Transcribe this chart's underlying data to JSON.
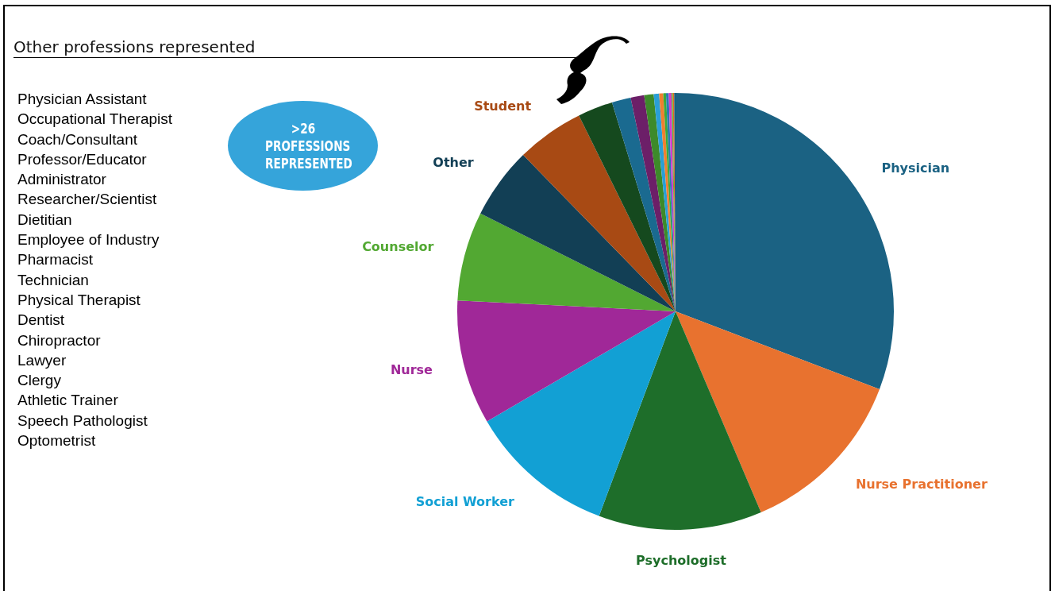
{
  "chart_data": {
    "type": "pie",
    "title": "Other professions represented",
    "categories": [
      "Physician",
      "Nurse Practitioner",
      "Psychologist",
      "Social Worker",
      "Nurse",
      "Counselor",
      "Other",
      "Student",
      null,
      null,
      null,
      null,
      null,
      null,
      null,
      null,
      null,
      null,
      null,
      null
    ],
    "values": [
      30.8,
      12.8,
      12.1,
      10.9,
      9.2,
      6.6,
      5.3,
      5.0,
      2.6,
      1.4,
      1.0,
      0.7,
      0.4,
      0.3,
      0.2,
      0.2,
      0.2,
      0.1,
      0.1,
      0.1
    ],
    "colors": [
      "#1b6283",
      "#e8722f",
      "#1e6e2a",
      "#12a0d4",
      "#a02898",
      "#52a832",
      "#123f55",
      "#a84a14",
      "#15491e",
      "#1a6a90",
      "#6c1f68",
      "#3d8a2a",
      "#2a9fd6",
      "#f07f30",
      "#3aaa3a",
      "#2c79b0",
      "#d43bd0",
      "#5db83a",
      "#e06a20",
      "#1d5d7d"
    ],
    "annotations": [
      ">26 PROFESSIONS REPRESENTED",
      "Physician Assistant",
      "Occupational Therapist",
      "Coach/Consultant",
      "Professor/Educator",
      "Administrator",
      "Researcher/Scientist",
      "Dietitian",
      "Employee of Industry",
      "Pharmacist",
      "Technician",
      "Physical Therapist",
      "Dentist",
      "Chiropractor",
      "Lawyer",
      "Clergy",
      "Athletic Trainer",
      "Speech Pathologist",
      "Optometrist"
    ]
  }
}
